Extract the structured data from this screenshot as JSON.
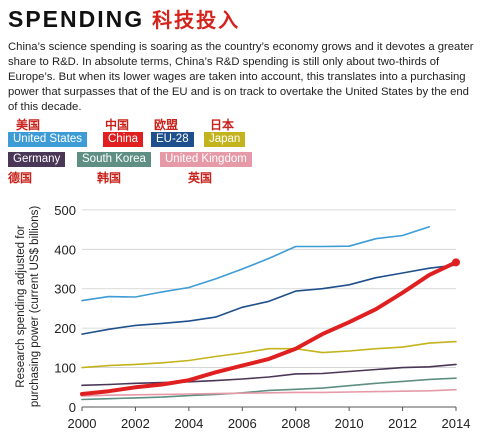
{
  "header": {
    "title_en": "SPENDING",
    "title_zh": "科技投入"
  },
  "lede": "China’s science spending is soaring as the country’s economy grows and it devotes a greater share to R&D. In absolute terms, China’s R&D spending is still only about two-thirds of Europe’s. But when its lower wages are taken into account, this translates into a purchasing power that surpasses that of the EU and is on track to overtake the United States by the end of this decade.",
  "legend": {
    "items": [
      {
        "key": "us",
        "label": "United States",
        "zh": "美国",
        "color": "#3d9bd6",
        "zh_pos": "above"
      },
      {
        "key": "cn",
        "label": "China",
        "zh": "中国",
        "color": "#e02020",
        "zh_pos": "above"
      },
      {
        "key": "eu",
        "label": "EU-28",
        "zh": "欧盟",
        "color": "#1f4f8c",
        "zh_pos": "above"
      },
      {
        "key": "jp",
        "label": "Japan",
        "zh": "日本",
        "color": "#c3b31c",
        "zh_pos": "above"
      },
      {
        "key": "de",
        "label": "Germany",
        "zh": "德国",
        "color": "#4a3656",
        "zh_pos": "below"
      },
      {
        "key": "kr",
        "label": "South Korea",
        "zh": "韩国",
        "color": "#5e8f82",
        "zh_pos": "below"
      },
      {
        "key": "uk",
        "label": "United Kingdom",
        "zh": "英国",
        "color": "#e69aa8",
        "zh_pos": "below"
      }
    ]
  },
  "chart_data": {
    "type": "line",
    "ylabel": "Research spending adjusted for purchasing power (current US$ billions)",
    "xlabel": "",
    "x": [
      2000,
      2001,
      2002,
      2003,
      2004,
      2005,
      2006,
      2007,
      2008,
      2009,
      2010,
      2011,
      2012,
      2013,
      2014
    ],
    "xticks": [
      "2000",
      "2002",
      "2004",
      "2006",
      "2008",
      "2010",
      "2012",
      "2014"
    ],
    "yticks": [
      "0",
      "100",
      "200",
      "300",
      "400",
      "500"
    ],
    "ylim": [
      0,
      520
    ],
    "xlim": [
      2000,
      2014
    ],
    "grid": "horizontal",
    "series": [
      {
        "name": "United States",
        "key": "us",
        "color": "#3d9bd6",
        "width": 1.6,
        "values": [
          270,
          280,
          279,
          292,
          303,
          325,
          350,
          377,
          407,
          407,
          408,
          427,
          435,
          457,
          null
        ]
      },
      {
        "name": "EU-28",
        "key": "eu",
        "color": "#1f4f8c",
        "width": 1.6,
        "values": [
          185,
          197,
          207,
          212,
          218,
          228,
          253,
          268,
          294,
          300,
          310,
          328,
          340,
          352,
          360
        ]
      },
      {
        "name": "China",
        "key": "cn",
        "color": "#e02020",
        "width": 4,
        "values": [
          33,
          40,
          50,
          57,
          68,
          88,
          105,
          122,
          148,
          185,
          215,
          248,
          290,
          335,
          367
        ]
      },
      {
        "name": "Japan",
        "key": "jp",
        "color": "#c3b31c",
        "width": 1.6,
        "values": [
          100,
          105,
          108,
          112,
          118,
          128,
          137,
          148,
          148,
          138,
          142,
          148,
          152,
          162,
          166
        ]
      },
      {
        "name": "Germany",
        "key": "de",
        "color": "#4a3656",
        "width": 1.6,
        "values": [
          55,
          57,
          60,
          62,
          64,
          67,
          71,
          76,
          84,
          85,
          90,
          95,
          100,
          102,
          108
        ]
      },
      {
        "name": "South Korea",
        "key": "kr",
        "color": "#5e8f82",
        "width": 1.6,
        "values": [
          19,
          21,
          23,
          25,
          29,
          32,
          36,
          42,
          45,
          48,
          54,
          60,
          65,
          70,
          73
        ]
      },
      {
        "name": "United Kingdom",
        "key": "uk",
        "color": "#e69aa8",
        "width": 1.6,
        "values": [
          28,
          30,
          31,
          32,
          33,
          34,
          35,
          36,
          37,
          37,
          38,
          39,
          40,
          41,
          44
        ]
      }
    ]
  }
}
